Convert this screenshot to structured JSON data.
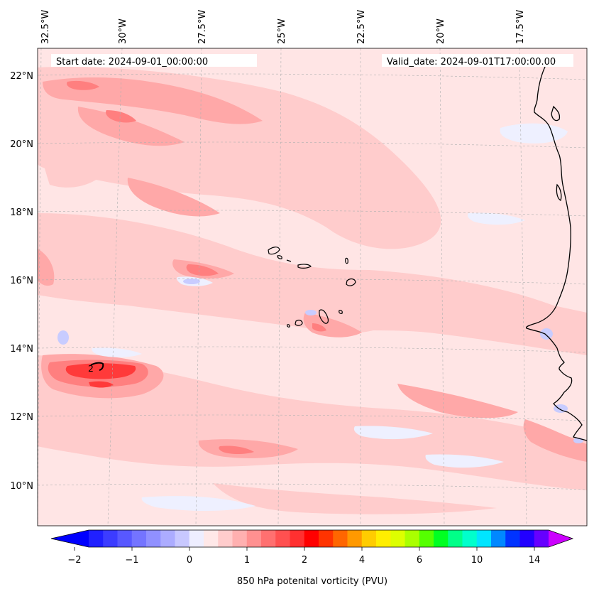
{
  "header": {
    "start_date": "Start date: 2024-09-01_00:00:00",
    "valid_date": "Valid_date: 2024-09-01T17:00:00.00"
  },
  "map": {
    "longitude_labels": [
      "32.5°W",
      "30°W",
      "27.5°W",
      "25°W",
      "22.5°W",
      "20°W",
      "17.5°W"
    ],
    "latitude_labels": [
      "22°N",
      "20°N",
      "18°N",
      "16°N",
      "14°N",
      "12°N",
      "10°N"
    ],
    "contour_label": "2",
    "colors": {
      "background_field": "#ffe5e5",
      "light_pink": "#ffcccc",
      "medium_pink": "#ffa8a8",
      "salmon": "#ff7f7f",
      "red": "#ff3a3a",
      "light_blue": "#eef0ff",
      "lavender": "#c8ccff",
      "coastline": "#000000"
    }
  },
  "colorbar": {
    "title": "850 hPa potenital vorticity (PVU)",
    "tick_labels": [
      "−2",
      "−1",
      "0",
      "1",
      "2",
      "4",
      "6",
      "10",
      "14"
    ],
    "segment_colors": [
      "#2020ff",
      "#3c3cff",
      "#5858ff",
      "#7474ff",
      "#9090ff",
      "#acacff",
      "#c8c8ff",
      "#eeeeff",
      "#ffe8e8",
      "#ffcccc",
      "#ffb0b0",
      "#ff9090",
      "#ff7070",
      "#ff5050",
      "#ff3030",
      "#ff0000",
      "#ff3300",
      "#ff6600",
      "#ff9900",
      "#ffcc00",
      "#ffee00",
      "#ddff00",
      "#aaff00",
      "#55ff00",
      "#00ff22",
      "#00ff88",
      "#00ffcc",
      "#00e5ff",
      "#0088ff",
      "#0033ff",
      "#2200ff",
      "#6600ff"
    ],
    "extend_low_color": "#0000ff",
    "extend_high_color": "#cc00ff"
  }
}
